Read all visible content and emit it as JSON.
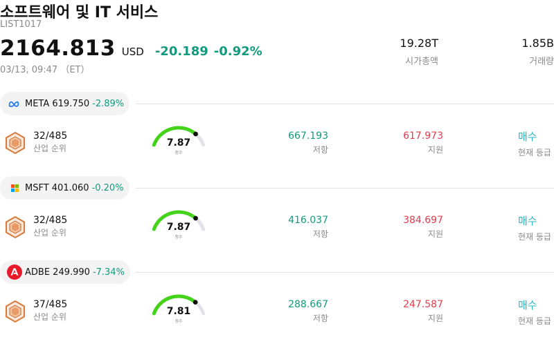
{
  "header": {
    "title": "소프트웨어 및 IT 서비스",
    "code": "LIST1017",
    "price": "2164.813",
    "currency": "USD",
    "change": "-20.189",
    "change_pct": "-0.92%",
    "timestamp": "03/13, 09:47 （ET）"
  },
  "stats": {
    "market_cap": {
      "value": "19.28T",
      "label": "시가총액"
    },
    "volume": {
      "value": "1.85B",
      "label": "거래량"
    }
  },
  "colors": {
    "positive": "#119a7e",
    "negative": "#e23b4a",
    "rating": "#2bb5c6",
    "gauge_fill": "#44d21a",
    "gauge_track": "#e2e2ea"
  },
  "stocks": [
    {
      "logo": "meta-logo-icon",
      "ticker_price": "META 619.750",
      "change_pct": "-2.89%",
      "rank": "32/485",
      "rank_label": "산업 순위",
      "score": "7.87",
      "score_fraction": 0.787,
      "score_label": "점수",
      "resistance": "667.193",
      "resistance_label": "저항",
      "support": "617.973",
      "support_label": "지원",
      "rating": "매수",
      "rating_label": "현재 등급"
    },
    {
      "logo": "microsoft-logo-icon",
      "ticker_price": "MSFT 401.060",
      "change_pct": "-0.20%",
      "rank": "32/485",
      "rank_label": "산업 순위",
      "score": "7.87",
      "score_fraction": 0.787,
      "score_label": "점수",
      "resistance": "416.037",
      "resistance_label": "저항",
      "support": "384.697",
      "support_label": "지원",
      "rating": "매수",
      "rating_label": "현재 등급"
    },
    {
      "logo": "adobe-logo-icon",
      "ticker_price": "ADBE 249.990",
      "change_pct": "-7.34%",
      "rank": "37/485",
      "rank_label": "산업 순위",
      "score": "7.81",
      "score_fraction": 0.781,
      "score_label": "점수",
      "resistance": "288.667",
      "resistance_label": "저항",
      "support": "247.587",
      "support_label": "지원",
      "rating": "매수",
      "rating_label": "현재 등급"
    }
  ]
}
